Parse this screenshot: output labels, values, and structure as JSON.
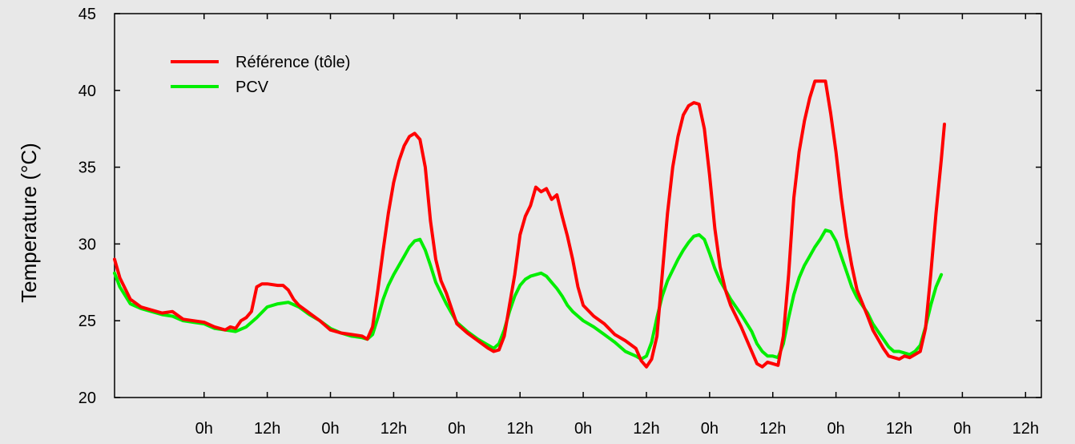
{
  "chart_data": {
    "type": "line",
    "title": "",
    "xlabel": "",
    "ylabel": "Temperature (°C)",
    "ylim": [
      20,
      45
    ],
    "yticks": [
      20,
      25,
      30,
      35,
      40,
      45
    ],
    "xlim": [
      -17,
      159
    ],
    "xticks": [
      {
        "x": 0,
        "label": "0h"
      },
      {
        "x": 12,
        "label": "12h"
      },
      {
        "x": 24,
        "label": "0h"
      },
      {
        "x": 36,
        "label": "12h"
      },
      {
        "x": 48,
        "label": "0h"
      },
      {
        "x": 60,
        "label": "12h"
      },
      {
        "x": 72,
        "label": "0h"
      },
      {
        "x": 84,
        "label": "12h"
      },
      {
        "x": 96,
        "label": "0h"
      },
      {
        "x": 108,
        "label": "12h"
      },
      {
        "x": 120,
        "label": "0h"
      },
      {
        "x": 132,
        "label": "12h"
      },
      {
        "x": 144,
        "label": "0h"
      },
      {
        "x": 156,
        "label": "12h"
      }
    ],
    "grid": false,
    "legend_position": "top-left",
    "series": [
      {
        "name": "Référence (tôle)",
        "color": "#ff0000",
        "points": [
          [
            -17,
            29.0
          ],
          [
            -16,
            27.8
          ],
          [
            -14,
            26.4
          ],
          [
            -12,
            25.9
          ],
          [
            -10,
            25.7
          ],
          [
            -8,
            25.5
          ],
          [
            -6,
            25.6
          ],
          [
            -4,
            25.1
          ],
          [
            -2,
            25.0
          ],
          [
            0,
            24.9
          ],
          [
            2,
            24.6
          ],
          [
            4,
            24.4
          ],
          [
            5,
            24.6
          ],
          [
            6,
            24.5
          ],
          [
            7,
            25.0
          ],
          [
            8,
            25.2
          ],
          [
            9,
            25.6
          ],
          [
            10,
            27.2
          ],
          [
            11,
            27.4
          ],
          [
            12,
            27.4
          ],
          [
            14,
            27.3
          ],
          [
            15,
            27.3
          ],
          [
            16,
            27.0
          ],
          [
            17,
            26.4
          ],
          [
            18,
            26.0
          ],
          [
            20,
            25.5
          ],
          [
            22,
            25.0
          ],
          [
            24,
            24.4
          ],
          [
            26,
            24.2
          ],
          [
            28,
            24.1
          ],
          [
            30,
            24.0
          ],
          [
            31,
            23.8
          ],
          [
            32,
            24.6
          ],
          [
            33,
            27.0
          ],
          [
            34,
            29.6
          ],
          [
            35,
            32.0
          ],
          [
            36,
            34.0
          ],
          [
            37,
            35.4
          ],
          [
            38,
            36.4
          ],
          [
            39,
            37.0
          ],
          [
            40,
            37.2
          ],
          [
            41,
            36.8
          ],
          [
            42,
            35.0
          ],
          [
            43,
            31.5
          ],
          [
            44,
            29.0
          ],
          [
            45,
            27.6
          ],
          [
            46,
            26.8
          ],
          [
            47,
            25.8
          ],
          [
            48,
            24.8
          ],
          [
            50,
            24.2
          ],
          [
            52,
            23.7
          ],
          [
            54,
            23.2
          ],
          [
            55,
            23.0
          ],
          [
            56,
            23.1
          ],
          [
            57,
            24.0
          ],
          [
            58,
            26.0
          ],
          [
            59,
            28.0
          ],
          [
            60,
            30.6
          ],
          [
            61,
            31.8
          ],
          [
            62,
            32.5
          ],
          [
            63,
            33.7
          ],
          [
            64,
            33.4
          ],
          [
            65,
            33.6
          ],
          [
            66,
            32.9
          ],
          [
            67,
            33.2
          ],
          [
            68,
            31.8
          ],
          [
            69,
            30.5
          ],
          [
            70,
            29.0
          ],
          [
            71,
            27.2
          ],
          [
            72,
            26.0
          ],
          [
            74,
            25.3
          ],
          [
            76,
            24.8
          ],
          [
            78,
            24.1
          ],
          [
            80,
            23.7
          ],
          [
            82,
            23.2
          ],
          [
            83,
            22.4
          ],
          [
            84,
            22.0
          ],
          [
            85,
            22.5
          ],
          [
            86,
            24.0
          ],
          [
            87,
            28.0
          ],
          [
            88,
            32.0
          ],
          [
            89,
            35.0
          ],
          [
            90,
            37.0
          ],
          [
            91,
            38.4
          ],
          [
            92,
            39.0
          ],
          [
            93,
            39.2
          ],
          [
            94,
            39.1
          ],
          [
            95,
            37.5
          ],
          [
            96,
            34.5
          ],
          [
            97,
            31.0
          ],
          [
            98,
            28.5
          ],
          [
            99,
            27.0
          ],
          [
            100,
            26.0
          ],
          [
            102,
            24.6
          ],
          [
            104,
            23.0
          ],
          [
            105,
            22.2
          ],
          [
            106,
            22.0
          ],
          [
            107,
            22.3
          ],
          [
            108,
            22.2
          ],
          [
            109,
            22.1
          ],
          [
            110,
            24.0
          ],
          [
            111,
            28.0
          ],
          [
            112,
            33.0
          ],
          [
            113,
            36.0
          ],
          [
            114,
            38.0
          ],
          [
            115,
            39.5
          ],
          [
            116,
            40.6
          ],
          [
            117,
            40.6
          ],
          [
            118,
            40.6
          ],
          [
            119,
            38.5
          ],
          [
            120,
            36.0
          ],
          [
            121,
            33.0
          ],
          [
            122,
            30.5
          ],
          [
            123,
            28.6
          ],
          [
            124,
            27.0
          ],
          [
            126,
            25.3
          ],
          [
            127,
            24.4
          ],
          [
            128,
            23.8
          ],
          [
            129,
            23.2
          ],
          [
            130,
            22.7
          ],
          [
            131,
            22.6
          ],
          [
            132,
            22.5
          ],
          [
            133,
            22.7
          ],
          [
            134,
            22.6
          ],
          [
            135,
            22.8
          ],
          [
            136,
            23.0
          ],
          [
            137,
            24.5
          ],
          [
            138,
            28.0
          ],
          [
            139,
            32.0
          ],
          [
            140,
            35.5
          ],
          [
            140.6,
            37.8
          ]
        ]
      },
      {
        "name": "PCV",
        "color": "#00ee00",
        "points": [
          [
            -17,
            28.1
          ],
          [
            -16,
            27.2
          ],
          [
            -14,
            26.1
          ],
          [
            -12,
            25.8
          ],
          [
            -10,
            25.6
          ],
          [
            -8,
            25.4
          ],
          [
            -6,
            25.3
          ],
          [
            -4,
            25.0
          ],
          [
            -2,
            24.9
          ],
          [
            0,
            24.8
          ],
          [
            2,
            24.5
          ],
          [
            4,
            24.4
          ],
          [
            6,
            24.3
          ],
          [
            8,
            24.6
          ],
          [
            10,
            25.2
          ],
          [
            12,
            25.9
          ],
          [
            14,
            26.1
          ],
          [
            16,
            26.2
          ],
          [
            18,
            25.9
          ],
          [
            20,
            25.4
          ],
          [
            22,
            25.0
          ],
          [
            24,
            24.5
          ],
          [
            26,
            24.2
          ],
          [
            28,
            24.0
          ],
          [
            30,
            23.9
          ],
          [
            31,
            23.8
          ],
          [
            32,
            24.1
          ],
          [
            33,
            25.2
          ],
          [
            34,
            26.4
          ],
          [
            35,
            27.3
          ],
          [
            36,
            28.0
          ],
          [
            37,
            28.6
          ],
          [
            38,
            29.2
          ],
          [
            39,
            29.8
          ],
          [
            40,
            30.2
          ],
          [
            41,
            30.3
          ],
          [
            42,
            29.6
          ],
          [
            43,
            28.6
          ],
          [
            44,
            27.5
          ],
          [
            45,
            26.8
          ],
          [
            46,
            26.1
          ],
          [
            47,
            25.5
          ],
          [
            48,
            24.9
          ],
          [
            50,
            24.3
          ],
          [
            52,
            23.8
          ],
          [
            54,
            23.4
          ],
          [
            55,
            23.2
          ],
          [
            56,
            23.5
          ],
          [
            57,
            24.4
          ],
          [
            58,
            25.6
          ],
          [
            59,
            26.6
          ],
          [
            60,
            27.3
          ],
          [
            61,
            27.7
          ],
          [
            62,
            27.9
          ],
          [
            63,
            28.0
          ],
          [
            64,
            28.1
          ],
          [
            65,
            27.9
          ],
          [
            66,
            27.5
          ],
          [
            67,
            27.1
          ],
          [
            68,
            26.6
          ],
          [
            69,
            26.0
          ],
          [
            70,
            25.6
          ],
          [
            71,
            25.3
          ],
          [
            72,
            25.0
          ],
          [
            74,
            24.6
          ],
          [
            76,
            24.1
          ],
          [
            78,
            23.6
          ],
          [
            80,
            23.0
          ],
          [
            82,
            22.7
          ],
          [
            83,
            22.5
          ],
          [
            84,
            22.7
          ],
          [
            85,
            23.6
          ],
          [
            86,
            25.2
          ],
          [
            87,
            26.6
          ],
          [
            88,
            27.6
          ],
          [
            89,
            28.3
          ],
          [
            90,
            29.0
          ],
          [
            91,
            29.6
          ],
          [
            92,
            30.1
          ],
          [
            93,
            30.5
          ],
          [
            94,
            30.6
          ],
          [
            95,
            30.3
          ],
          [
            96,
            29.4
          ],
          [
            97,
            28.4
          ],
          [
            98,
            27.6
          ],
          [
            99,
            27.0
          ],
          [
            100,
            26.4
          ],
          [
            102,
            25.4
          ],
          [
            104,
            24.3
          ],
          [
            105,
            23.5
          ],
          [
            106,
            23.0
          ],
          [
            107,
            22.7
          ],
          [
            108,
            22.7
          ],
          [
            109,
            22.6
          ],
          [
            110,
            23.5
          ],
          [
            111,
            25.2
          ],
          [
            112,
            26.7
          ],
          [
            113,
            27.8
          ],
          [
            114,
            28.6
          ],
          [
            115,
            29.2
          ],
          [
            116,
            29.8
          ],
          [
            117,
            30.3
          ],
          [
            118,
            30.9
          ],
          [
            119,
            30.8
          ],
          [
            120,
            30.2
          ],
          [
            121,
            29.2
          ],
          [
            122,
            28.2
          ],
          [
            123,
            27.2
          ],
          [
            124,
            26.5
          ],
          [
            126,
            25.5
          ],
          [
            127,
            24.8
          ],
          [
            128,
            24.3
          ],
          [
            129,
            23.8
          ],
          [
            130,
            23.3
          ],
          [
            131,
            23.0
          ],
          [
            132,
            23.0
          ],
          [
            133,
            22.9
          ],
          [
            134,
            22.8
          ],
          [
            135,
            23.0
          ],
          [
            136,
            23.4
          ],
          [
            137,
            24.6
          ],
          [
            138,
            26.0
          ],
          [
            139,
            27.2
          ],
          [
            140,
            28.0
          ]
        ]
      }
    ]
  }
}
